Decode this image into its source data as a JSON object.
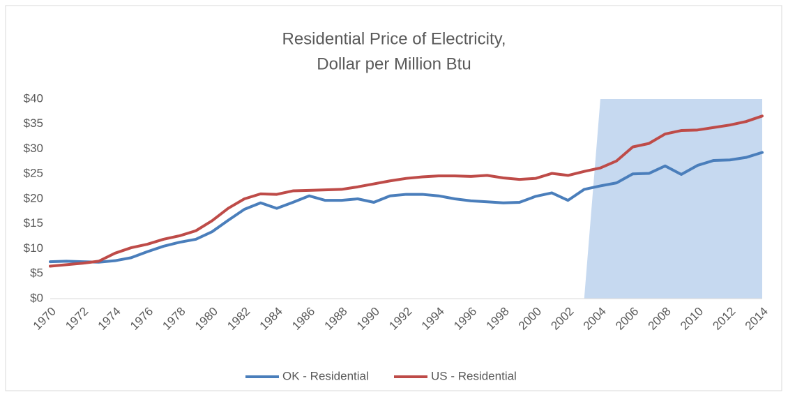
{
  "chart_data": {
    "type": "line",
    "title": [
      "Residential Price of Electricity,",
      "Dollar per Million Btu"
    ],
    "categories": [
      "1970",
      null,
      "1972",
      null,
      "1974",
      null,
      "1976",
      null,
      "1978",
      null,
      "1980",
      null,
      "1982",
      null,
      "1984",
      null,
      "1986",
      null,
      "1988",
      null,
      "1990",
      null,
      "1992",
      null,
      "1994",
      null,
      "1996",
      null,
      "1998",
      null,
      "2000",
      null,
      "2002",
      null,
      "2004",
      null,
      "2006",
      null,
      "2008",
      null,
      "2010",
      null,
      "2012",
      null,
      "2014"
    ],
    "series": [
      {
        "name": "OK - Residential",
        "color": "#4a7ebb",
        "values": [
          7.4,
          7.5,
          7.4,
          7.3,
          7.6,
          8.2,
          9.4,
          10.5,
          11.3,
          11.9,
          13.4,
          15.7,
          17.9,
          19.2,
          18.1,
          19.3,
          20.6,
          19.7,
          19.7,
          20.0,
          19.3,
          20.6,
          20.9,
          20.9,
          20.6,
          20.0,
          19.6,
          19.4,
          19.2,
          19.3,
          20.5,
          21.2,
          19.7,
          21.9,
          22.6,
          23.2,
          25.0,
          25.1,
          26.6,
          24.9,
          26.7,
          27.7,
          27.8,
          28.3,
          29.3
        ]
      },
      {
        "name": "US - Residential",
        "color": "#be4b48",
        "values": [
          6.5,
          6.8,
          7.1,
          7.5,
          9.1,
          10.2,
          10.9,
          11.9,
          12.6,
          13.6,
          15.6,
          18.1,
          20.0,
          21.0,
          20.9,
          21.6,
          21.7,
          21.8,
          21.9,
          22.4,
          23.0,
          23.6,
          24.1,
          24.4,
          24.6,
          24.6,
          24.5,
          24.7,
          24.2,
          23.9,
          24.1,
          25.1,
          24.7,
          25.5,
          26.2,
          27.6,
          30.4,
          31.1,
          33.0,
          33.7,
          33.8,
          34.3,
          34.8,
          35.5,
          36.6
        ]
      }
    ],
    "shaded_area": {
      "color": "#c6d9f0",
      "values": [
        null,
        null,
        null,
        null,
        null,
        null,
        null,
        null,
        null,
        null,
        null,
        null,
        null,
        null,
        null,
        null,
        null,
        null,
        null,
        null,
        null,
        null,
        null,
        null,
        null,
        null,
        null,
        null,
        null,
        null,
        null,
        null,
        null,
        0,
        40,
        40,
        40,
        40,
        40,
        40,
        40,
        40,
        40,
        40,
        40
      ]
    },
    "ylim": [
      0,
      40
    ],
    "yticks": [
      {
        "value": 0,
        "label": "$0"
      },
      {
        "value": 5,
        "label": "$5"
      },
      {
        "value": 10,
        "label": "$10"
      },
      {
        "value": 15,
        "label": "$15"
      },
      {
        "value": 20,
        "label": "$20"
      },
      {
        "value": 25,
        "label": "$25"
      },
      {
        "value": 30,
        "label": "$30"
      },
      {
        "value": 35,
        "label": "$35"
      },
      {
        "value": 40,
        "label": "$40"
      }
    ],
    "grid": false,
    "legend": "bottom"
  }
}
